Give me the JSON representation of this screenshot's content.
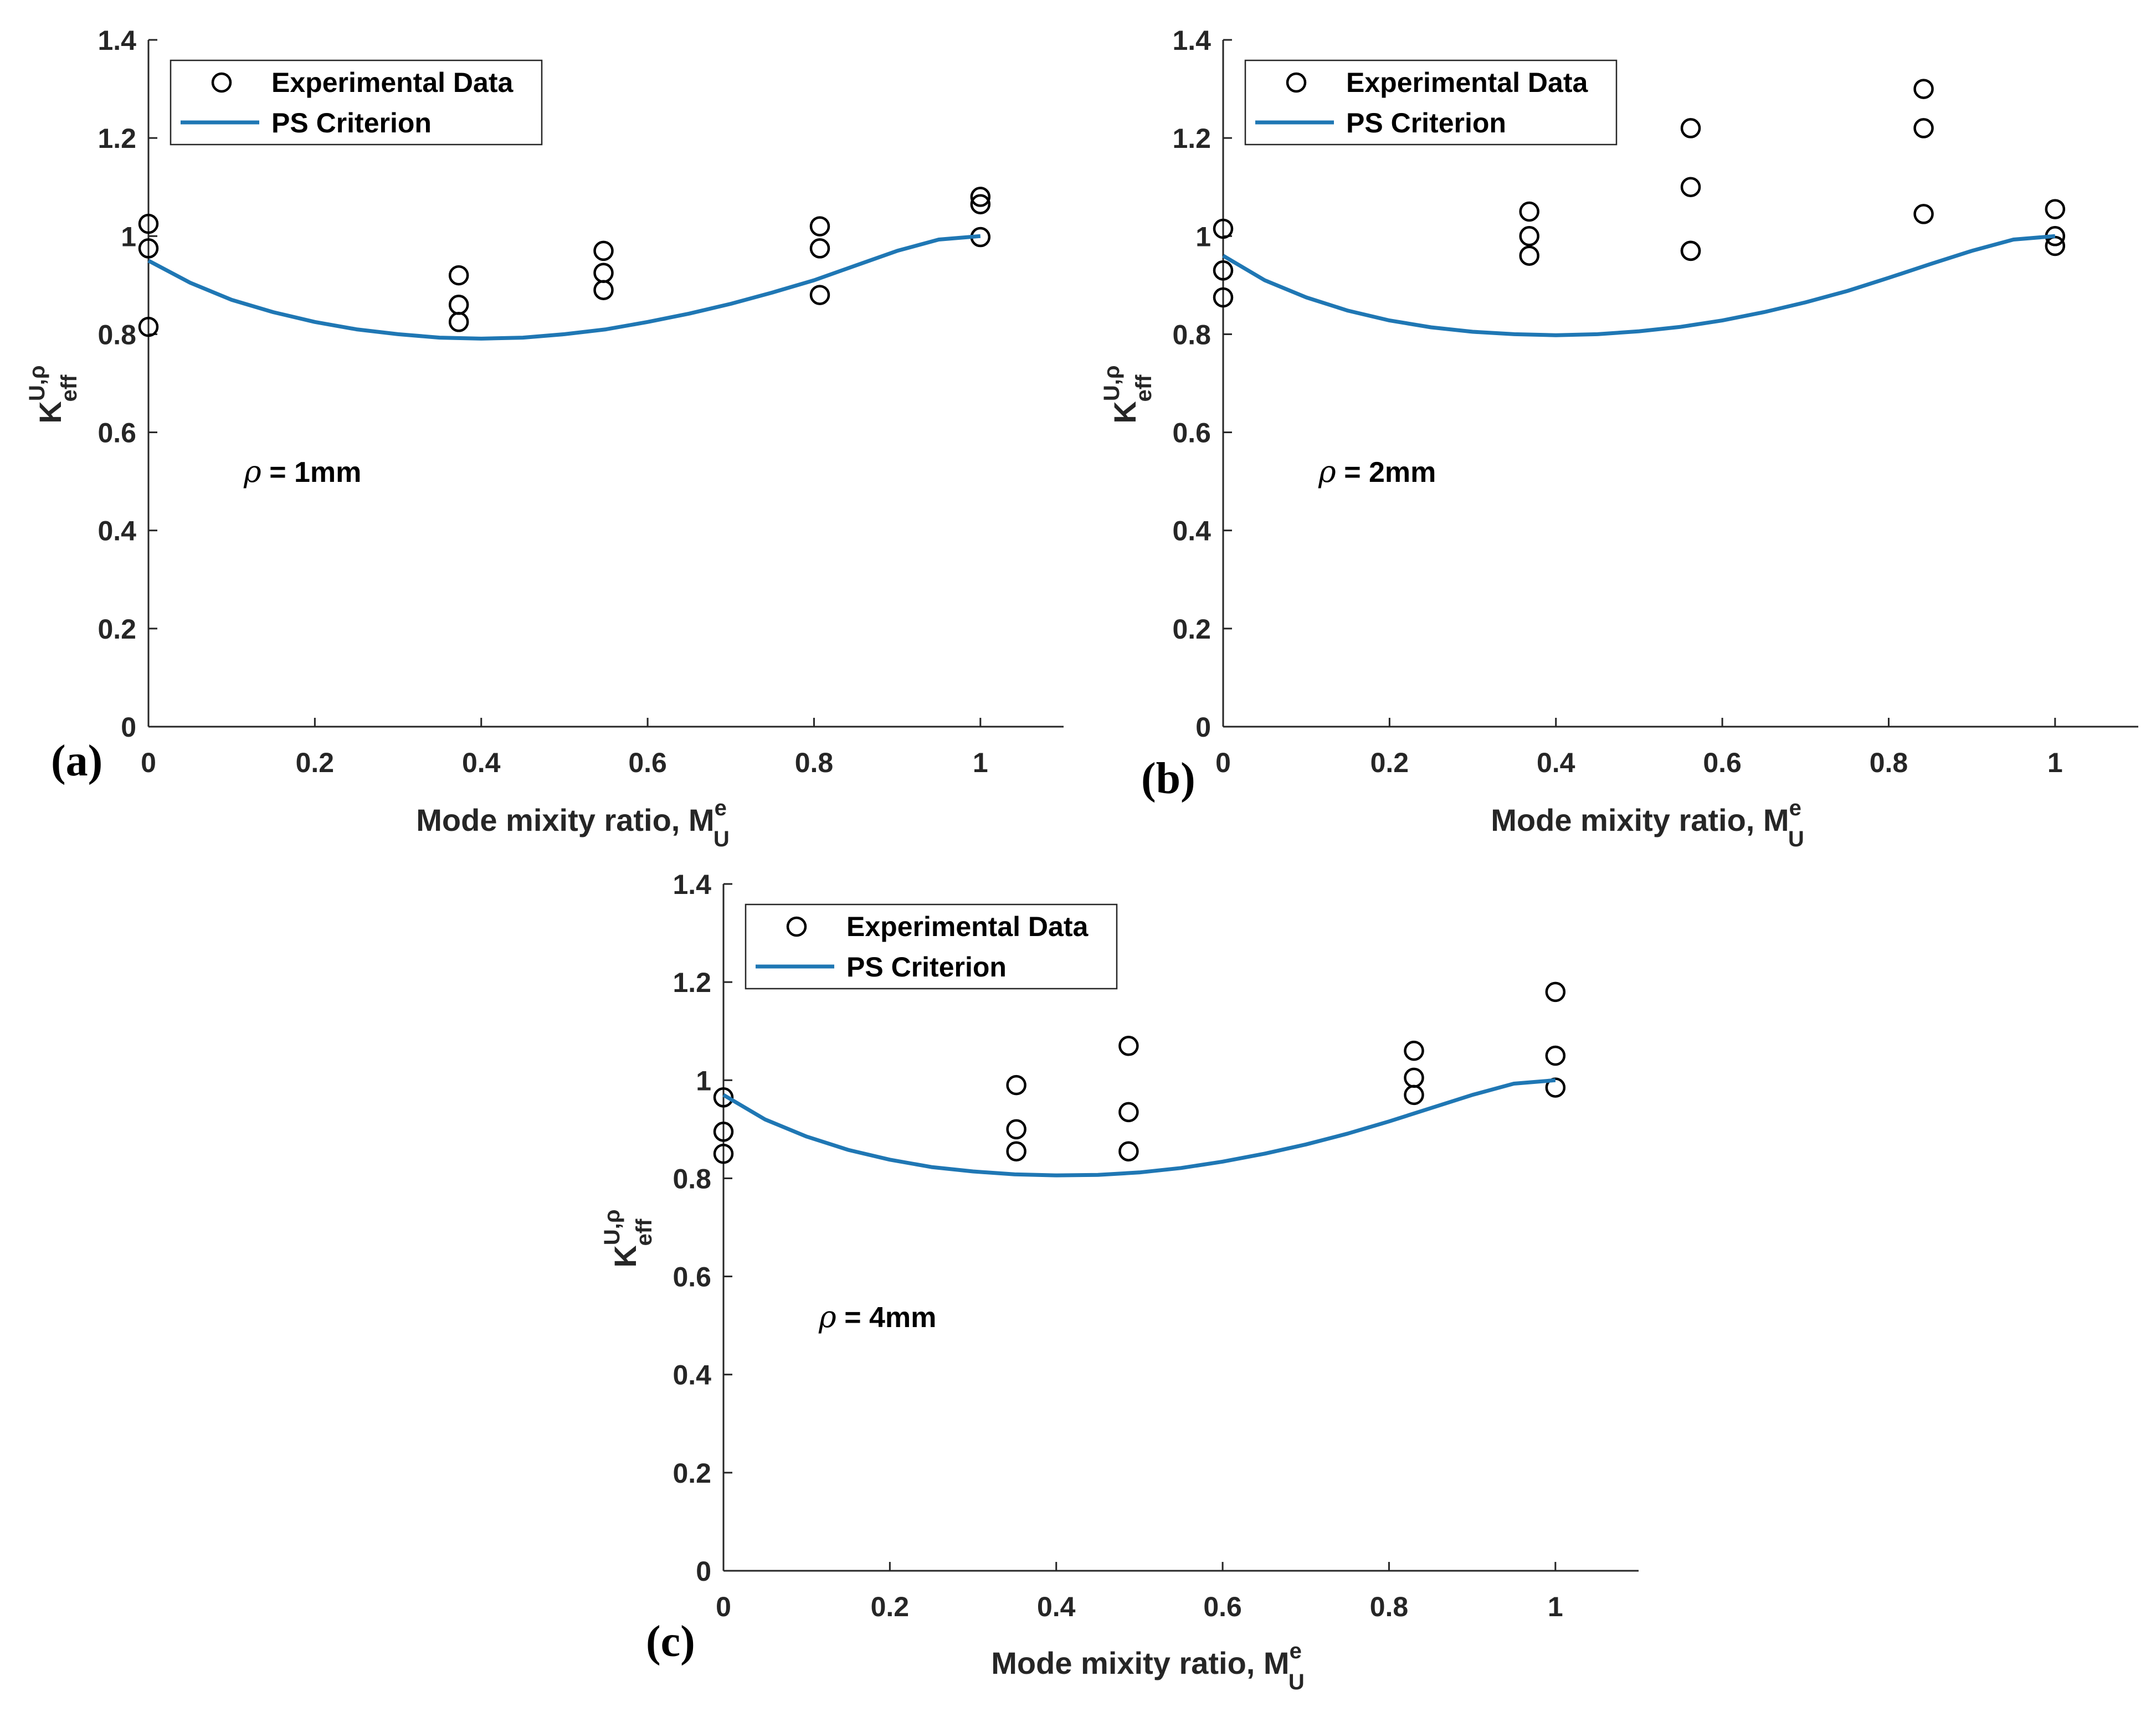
{
  "chart_data": [
    {
      "type": "scatter+line",
      "panel_label": "(a)",
      "annotation": {
        "symbol": "ρ",
        "text": " = 1mm"
      },
      "xlabel": {
        "main": "Mode mixity ratio, M",
        "sup": "e",
        "sub": "U"
      },
      "ylabel": {
        "main": "K",
        "sup": "U,ρ",
        "sub": "eff"
      },
      "xlim": [
        0,
        1.1
      ],
      "ylim": [
        0,
        1.4
      ],
      "xticks": [
        0,
        0.2,
        0.4,
        0.6,
        0.8,
        1
      ],
      "xtick_labels": [
        "0",
        "0.2",
        "0.4",
        "0.6",
        "0.8",
        "1"
      ],
      "yticks": [
        0,
        0.2,
        0.4,
        0.6,
        0.8,
        1,
        1.2,
        1.4
      ],
      "ytick_labels": [
        "0",
        "0.2",
        "0.4",
        "0.6",
        "0.8",
        "1",
        "1.2",
        "1.4"
      ],
      "legend": {
        "position": "top-left",
        "entries": [
          "Experimental Data",
          "PS Criterion"
        ]
      },
      "series": [
        {
          "name": "Experimental Data",
          "kind": "scatter",
          "marker": "circle",
          "color": "#000000",
          "x": [
            0,
            0,
            0,
            0.373,
            0.373,
            0.373,
            0.547,
            0.547,
            0.547,
            0.807,
            0.807,
            0.807,
            1.0,
            1.0,
            1.0
          ],
          "y": [
            1.025,
            0.975,
            0.815,
            0.92,
            0.86,
            0.825,
            0.97,
            0.925,
            0.89,
            1.02,
            0.975,
            0.88,
            1.08,
            1.065,
            0.998
          ]
        },
        {
          "name": "PS Criterion",
          "kind": "line",
          "color": "#1f77b4",
          "x": [
            0,
            0.05,
            0.1,
            0.15,
            0.2,
            0.25,
            0.3,
            0.35,
            0.4,
            0.45,
            0.5,
            0.55,
            0.6,
            0.65,
            0.7,
            0.75,
            0.8,
            0.85,
            0.9,
            0.95,
            1.0
          ],
          "y": [
            0.95,
            0.905,
            0.87,
            0.845,
            0.825,
            0.81,
            0.8,
            0.793,
            0.791,
            0.793,
            0.8,
            0.81,
            0.825,
            0.842,
            0.862,
            0.885,
            0.91,
            0.94,
            0.97,
            0.993,
            1.0
          ]
        }
      ]
    },
    {
      "type": "scatter+line",
      "panel_label": "(b)",
      "annotation": {
        "symbol": "ρ",
        "text": " = 2mm"
      },
      "xlabel": {
        "main": "Mode mixity ratio, M",
        "sup": "e",
        "sub": "U"
      },
      "ylabel": {
        "main": "K",
        "sup": "U,ρ",
        "sub": "eff"
      },
      "xlim": [
        0,
        1.1
      ],
      "ylim": [
        0,
        1.4
      ],
      "xticks": [
        0,
        0.2,
        0.4,
        0.6,
        0.8,
        1
      ],
      "xtick_labels": [
        "0",
        "0.2",
        "0.4",
        "0.6",
        "0.8",
        "1"
      ],
      "yticks": [
        0,
        0.2,
        0.4,
        0.6,
        0.8,
        1,
        1.2,
        1.4
      ],
      "ytick_labels": [
        "0",
        "0.2",
        "0.4",
        "0.6",
        "0.8",
        "1",
        "1.2",
        "1.4"
      ],
      "legend": {
        "position": "top-left",
        "entries": [
          "Experimental Data",
          "PS Criterion"
        ]
      },
      "series": [
        {
          "name": "Experimental Data",
          "kind": "scatter",
          "marker": "circle",
          "color": "#000000",
          "x": [
            0,
            0,
            0,
            0.368,
            0.368,
            0.368,
            0.562,
            0.562,
            0.562,
            0.562,
            0.842,
            0.842,
            0.842,
            1.0,
            1.0,
            1.0
          ],
          "y": [
            1.015,
            0.93,
            0.875,
            1.05,
            1.0,
            0.96,
            1.22,
            1.1,
            0.97,
            0.97,
            1.3,
            1.22,
            1.045,
            1.055,
            1.0,
            0.98
          ]
        },
        {
          "name": "PS Criterion",
          "kind": "line",
          "color": "#1f77b4",
          "x": [
            0,
            0.05,
            0.1,
            0.15,
            0.2,
            0.25,
            0.3,
            0.35,
            0.4,
            0.45,
            0.5,
            0.55,
            0.6,
            0.65,
            0.7,
            0.75,
            0.8,
            0.85,
            0.9,
            0.95,
            1.0
          ],
          "y": [
            0.96,
            0.91,
            0.875,
            0.848,
            0.828,
            0.814,
            0.805,
            0.8,
            0.798,
            0.8,
            0.806,
            0.815,
            0.828,
            0.845,
            0.865,
            0.888,
            0.915,
            0.943,
            0.97,
            0.993,
            1.0
          ]
        }
      ]
    },
    {
      "type": "scatter+line",
      "panel_label": "(c)",
      "annotation": {
        "symbol": "ρ",
        "text": " = 4mm"
      },
      "xlabel": {
        "main": "Mode mixity ratio, M",
        "sup": "e",
        "sub": "U"
      },
      "ylabel": {
        "main": "K",
        "sup": "U,ρ",
        "sub": "eff"
      },
      "xlim": [
        0,
        1.1
      ],
      "ylim": [
        0,
        1.4
      ],
      "xticks": [
        0,
        0.2,
        0.4,
        0.6,
        0.8,
        1
      ],
      "xtick_labels": [
        "0",
        "0.2",
        "0.4",
        "0.6",
        "0.8",
        "1"
      ],
      "yticks": [
        0,
        0.2,
        0.4,
        0.6,
        0.8,
        1,
        1.2,
        1.4
      ],
      "ytick_labels": [
        "0",
        "0.2",
        "0.4",
        "0.6",
        "0.8",
        "1",
        "1.2",
        "1.4"
      ],
      "legend": {
        "position": "top-left",
        "entries": [
          "Experimental Data",
          "PS Criterion"
        ]
      },
      "series": [
        {
          "name": "Experimental Data",
          "kind": "scatter",
          "marker": "circle",
          "color": "#000000",
          "x": [
            0,
            0,
            0,
            0.352,
            0.352,
            0.352,
            0.487,
            0.487,
            0.487,
            0.83,
            0.83,
            0.83,
            1.0,
            1.0,
            1.0
          ],
          "y": [
            0.965,
            0.895,
            0.85,
            0.99,
            0.9,
            0.855,
            1.07,
            0.935,
            0.855,
            1.06,
            1.005,
            0.97,
            1.18,
            1.05,
            0.985
          ]
        },
        {
          "name": "PS Criterion",
          "kind": "line",
          "color": "#1f77b4",
          "x": [
            0,
            0.05,
            0.1,
            0.15,
            0.2,
            0.25,
            0.3,
            0.35,
            0.4,
            0.45,
            0.5,
            0.55,
            0.6,
            0.65,
            0.7,
            0.75,
            0.8,
            0.85,
            0.9,
            0.95,
            1.0
          ],
          "y": [
            0.97,
            0.92,
            0.885,
            0.858,
            0.838,
            0.823,
            0.814,
            0.808,
            0.806,
            0.807,
            0.812,
            0.821,
            0.834,
            0.85,
            0.869,
            0.891,
            0.916,
            0.943,
            0.97,
            0.993,
            1.0
          ]
        }
      ]
    }
  ]
}
